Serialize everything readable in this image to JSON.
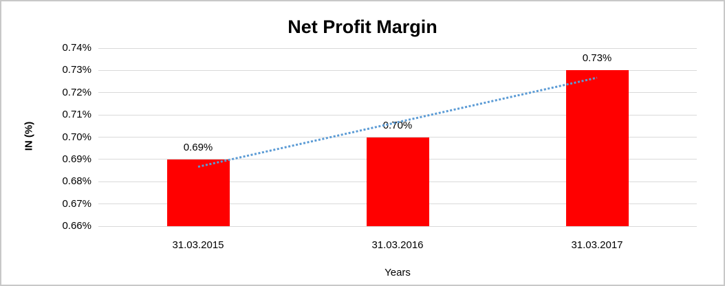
{
  "chart_data": {
    "type": "bar",
    "title": "Net Profit Margin",
    "xlabel": "Years",
    "ylabel": "IN (%)",
    "categories": [
      "31.03.2015",
      "31.03.2016",
      "31.03.2017"
    ],
    "series": [
      {
        "name": "Net Profit Margin",
        "values": [
          0.69,
          0.7,
          0.73
        ],
        "data_labels": [
          "0.69%",
          "0.70%",
          "0.73%"
        ]
      }
    ],
    "y_axis": {
      "min": 0.66,
      "max": 0.74,
      "step": 0.01,
      "tick_labels": [
        "0.74%",
        "0.73%",
        "0.72%",
        "0.71%",
        "0.70%",
        "0.69%",
        "0.68%",
        "0.67%",
        "0.66%"
      ]
    },
    "grid": "horizontal",
    "legend": "none",
    "colors": {
      "bar": "#FF0000",
      "gridline": "#D9D9D9",
      "trendline": "#5B9BD5",
      "text": "#000000"
    },
    "trendline": {
      "type": "linear",
      "style": "dotted",
      "start_value": 0.6867,
      "end_value": 0.7267
    }
  }
}
